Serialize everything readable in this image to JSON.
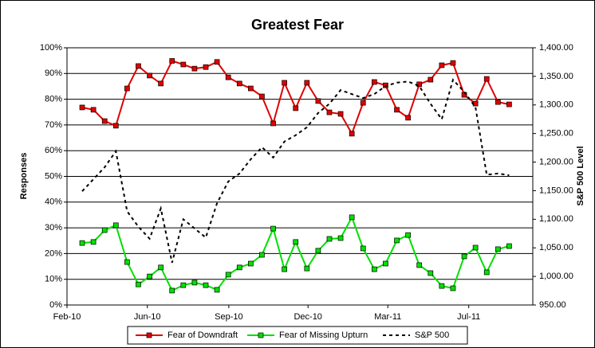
{
  "chart_data": {
    "type": "line",
    "title": "Greatest Fear",
    "y_label": "Responses",
    "y2_label": "S&P 500 Level",
    "x": [
      0,
      1,
      2,
      3,
      4,
      5,
      6,
      7,
      8,
      9,
      10,
      11,
      12,
      13,
      14,
      15,
      16,
      17,
      18,
      19,
      20,
      21,
      22,
      23,
      24,
      25,
      26,
      27,
      28,
      29,
      30,
      31,
      32,
      33,
      34,
      35,
      36,
      37,
      38
    ],
    "xlim": [
      -1.35,
      40.1
    ],
    "xticks": [
      {
        "value": -1.35,
        "label": "Feb-10"
      },
      {
        "value": 5.8,
        "label": "Jun-10"
      },
      {
        "value": 13.05,
        "label": "Sep-10"
      },
      {
        "value": 20.1,
        "label": "Dec-10"
      },
      {
        "value": 27.2,
        "label": "Mar-11"
      },
      {
        "value": 34.4,
        "label": "Jul-11"
      }
    ],
    "ylim": [
      0,
      100
    ],
    "yticks": [
      {
        "value": 0,
        "label": "0%"
      },
      {
        "value": 10,
        "label": "10%"
      },
      {
        "value": 20,
        "label": "20%"
      },
      {
        "value": 30,
        "label": "30%"
      },
      {
        "value": 40,
        "label": "40%"
      },
      {
        "value": 50,
        "label": "50%"
      },
      {
        "value": 60,
        "label": "60%"
      },
      {
        "value": 70,
        "label": "70%"
      },
      {
        "value": 80,
        "label": "80%"
      },
      {
        "value": 90,
        "label": "90%"
      },
      {
        "value": 100,
        "label": "100%"
      }
    ],
    "y2lim": [
      950,
      1400
    ],
    "y2ticks": [
      {
        "value": 950,
        "label": "950.00"
      },
      {
        "value": 1000,
        "label": "1,000.00"
      },
      {
        "value": 1050,
        "label": "1,050.00"
      },
      {
        "value": 1100,
        "label": "1,100.00"
      },
      {
        "value": 1150,
        "label": "1,150.00"
      },
      {
        "value": 1200,
        "label": "1,200.00"
      },
      {
        "value": 1250,
        "label": "1,250.00"
      },
      {
        "value": 1300,
        "label": "1,300.00"
      },
      {
        "value": 1350,
        "label": "1,350.00"
      },
      {
        "value": 1400,
        "label": "1,400.00"
      }
    ],
    "grid": true,
    "legend": "bottom",
    "series": [
      {
        "name": "Fear of Downdraft",
        "color": "#e00000",
        "marker": "square",
        "values": [
          76.8,
          75.9,
          71.5,
          69.7,
          84.2,
          92.9,
          89.2,
          86.1,
          94.9,
          93.5,
          91.9,
          92.5,
          94.5,
          88.5,
          86.1,
          84.2,
          81.1,
          70.6,
          86.4,
          76.5,
          86.4,
          79.3,
          74.9,
          74.3,
          66.6,
          78.6,
          86.7,
          85.4,
          75.9,
          72.8,
          85.8,
          87.6,
          93.2,
          94.1,
          81.7,
          78.3,
          87.9,
          78.9,
          78.0
        ]
      },
      {
        "name": "Fear of Missing Upturn",
        "color": "#00e000",
        "marker": "square",
        "values": [
          24.1,
          24.5,
          29.1,
          31.0,
          16.7,
          8.0,
          11.1,
          14.6,
          5.6,
          7.7,
          8.7,
          7.7,
          5.9,
          11.8,
          14.6,
          16.1,
          19.5,
          29.7,
          13.9,
          24.5,
          14.2,
          21.1,
          25.7,
          26.0,
          34.1,
          22.0,
          13.9,
          16.1,
          25.1,
          27.2,
          15.5,
          12.4,
          7.4,
          6.5,
          18.9,
          22.3,
          12.7,
          21.7,
          22.9
        ]
      },
      {
        "name": "S&P 500",
        "color": "#000000",
        "marker": "none",
        "dashed": true,
        "axis": "y2",
        "values": [
          1149,
          1170,
          1191,
          1219,
          1114,
          1087,
          1066,
          1119,
          1024,
          1100,
          1084,
          1068,
          1128,
          1166,
          1180,
          1205,
          1226,
          1208,
          1236,
          1247,
          1261,
          1286,
          1302,
          1326,
          1319,
          1312,
          1319,
          1333,
          1339,
          1341,
          1333,
          1302,
          1275,
          1344,
          1323,
          1296,
          1178,
          1180,
          1177
        ]
      }
    ]
  }
}
